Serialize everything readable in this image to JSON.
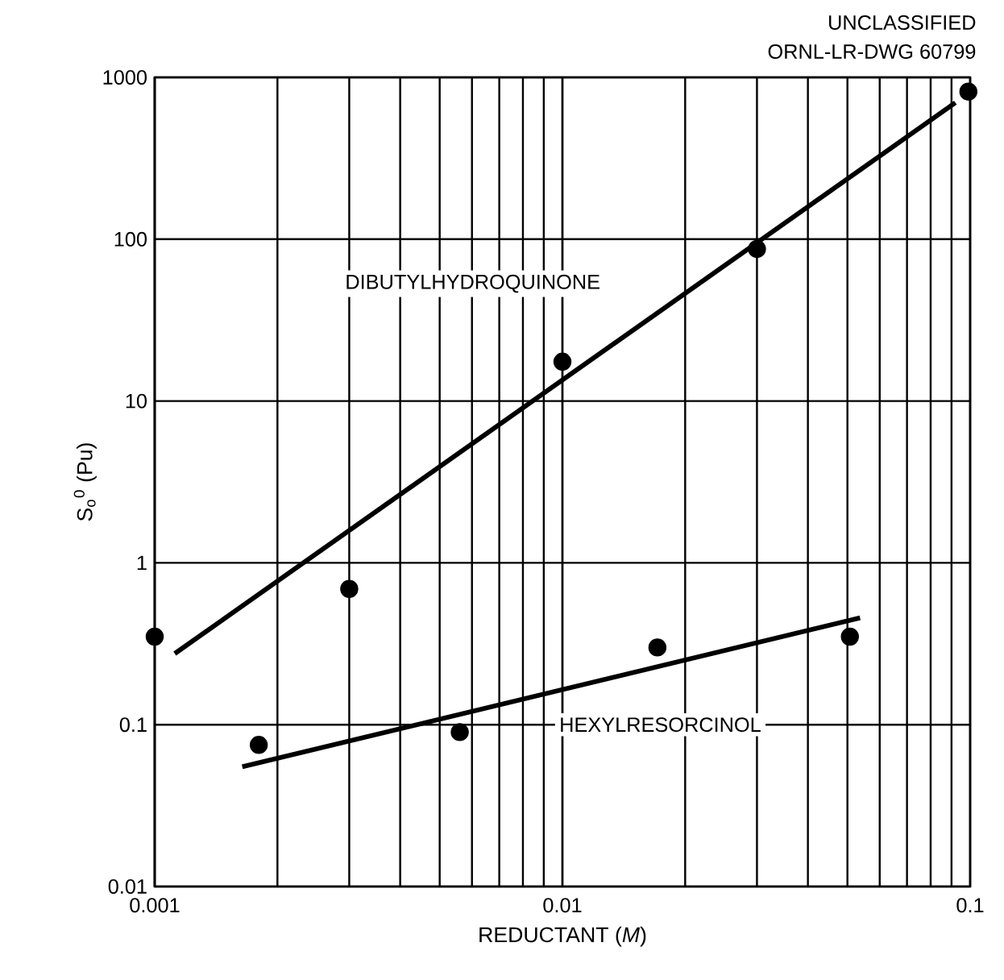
{
  "chart_data": {
    "type": "scatter",
    "xlabel": "REDUCTANT (*M*)",
    "ylabel": "S$_{o}$$^{0}$ (Pu)",
    "log": "xy",
    "grid": true,
    "marker": "circle",
    "xlim": [
      0.001,
      0.1
    ],
    "ylim": [
      0.01,
      1000
    ],
    "xticks": [
      0.001,
      0.01,
      0.1
    ],
    "yticks": [
      0.01,
      0.1,
      1,
      10,
      100,
      1000
    ],
    "series": [
      {
        "color": "#000000",
        "x": [
          0.001,
          0.003,
          0.01,
          0.03,
          0.099
        ],
        "values": [
          0.35,
          0.69,
          17.5,
          87,
          817
        ]
      },
      {
        "type": "line",
        "color": "#000000",
        "marker": "none",
        "x": [
          0.00112,
          0.092
        ],
        "values": [
          0.275,
          698
        ]
      },
      {
        "color": "#000000",
        "x": [
          0.0018,
          0.0056,
          0.0171,
          0.0507
        ],
        "values": [
          0.075,
          0.09,
          0.3,
          0.35
        ]
      },
      {
        "type": "line",
        "color": "#000000",
        "marker": "none",
        "x": [
          0.00164,
          0.0537
        ],
        "values": [
          0.055,
          0.457
        ]
      }
    ],
    "annotations": [
      "DIBUTYLHYDROQUINONE",
      "HEXYLRESORCINOL",
      "UNCLASSIFIED",
      "ORNL-LR-DWG 60799"
    ]
  }
}
